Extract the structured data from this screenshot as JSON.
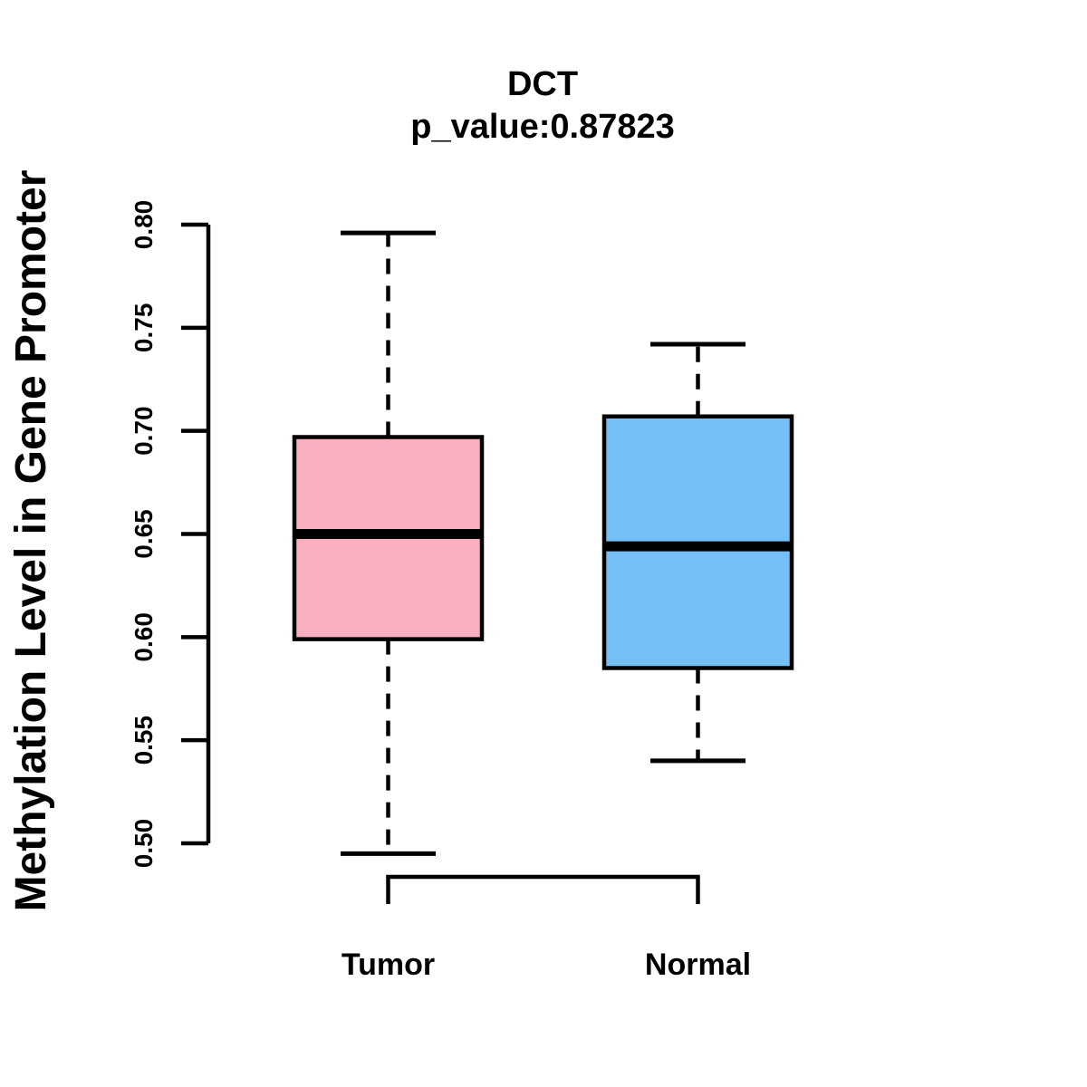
{
  "chart_data": {
    "type": "boxplot",
    "title": "DCT",
    "subtitle": "p_value:0.87823",
    "p_value": 0.87823,
    "ylabel": "Methylation Level in Gene Promoter",
    "xlabel": "",
    "categories": [
      "Tumor",
      "Normal"
    ],
    "ylim": [
      0.5,
      0.8
    ],
    "ytick_labels": [
      "0.50",
      "0.55",
      "0.60",
      "0.65",
      "0.70",
      "0.75",
      "0.80"
    ],
    "grid": false,
    "legend": false,
    "series": [
      {
        "name": "Tumor",
        "fill_color": "#FCAEC1",
        "lower_whisker": 0.495,
        "q1": 0.599,
        "median": 0.65,
        "q3": 0.697,
        "upper_whisker": 0.796
      },
      {
        "name": "Normal",
        "fill_color": "#74BFF7",
        "lower_whisker": 0.54,
        "q1": 0.585,
        "median": 0.644,
        "q3": 0.707,
        "upper_whisker": 0.742
      }
    ],
    "colors": {
      "stroke": "#000000",
      "background": "#FFFFFF",
      "tumor_fill": "#FCAEC1",
      "normal_fill": "#74BFF7"
    }
  }
}
